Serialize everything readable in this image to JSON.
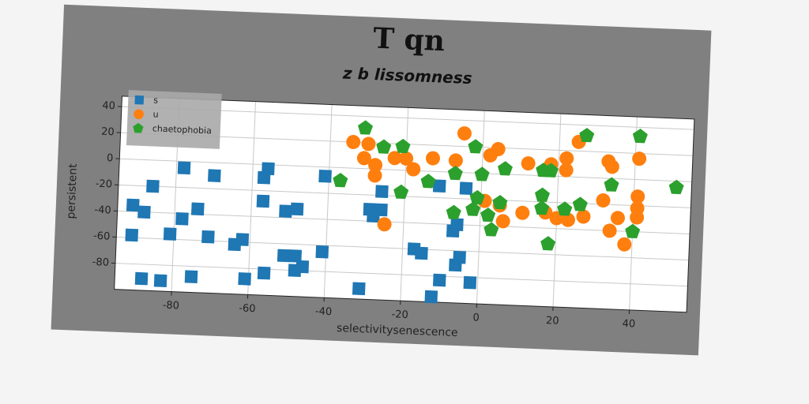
{
  "chart_data": {
    "type": "scatter",
    "title": "T qn",
    "subtitle": "z b lissomness",
    "xlabel": "selectivitysenescence",
    "ylabel": "persistent",
    "xlim": [
      -95,
      55
    ],
    "ylim": [
      -100,
      48
    ],
    "xticks": [
      -80,
      -60,
      -40,
      -20,
      0,
      20,
      40
    ],
    "yticks": [
      -80,
      -60,
      -40,
      -20,
      0,
      20,
      40
    ],
    "grid": true,
    "legend": "upper left",
    "series": [
      {
        "name": "s",
        "color": "#1f77b4",
        "marker": "square",
        "x": [
          -78,
          -70,
          -56,
          -57,
          -41,
          -86,
          -91,
          -88,
          -74,
          -78,
          -57,
          -51,
          -48,
          -91,
          -81,
          -71,
          -64,
          -62,
          -51,
          -48,
          -46,
          -48,
          -41,
          -56,
          -75,
          -61,
          -88,
          -83,
          -31,
          -26,
          -29,
          -28,
          -26,
          -11,
          -4,
          -17,
          -15,
          -5,
          -6,
          -7,
          -6,
          -10,
          -2,
          -12
        ],
        "values": [
          -5,
          -10,
          -3,
          -10,
          -7,
          -20,
          -35,
          -40,
          -36,
          -44,
          -28,
          -35,
          -33,
          -58,
          -56,
          -57,
          -62,
          -58,
          -69,
          -69,
          -77,
          -80,
          -65,
          -83,
          -88,
          -88,
          -91,
          -92,
          -92,
          -17,
          -31,
          -36,
          -31,
          -11,
          -12,
          -60,
          -63,
          -65,
          -71,
          -45,
          -40,
          -83,
          -84,
          -96
        ]
      },
      {
        "name": "u",
        "color": "#ff7f0e",
        "marker": "circle",
        "x": [
          -34,
          -30,
          -31,
          -28,
          -28,
          -23,
          -20,
          -18,
          -13,
          -7,
          -5,
          4,
          2,
          12,
          18,
          22,
          22,
          25,
          33,
          34,
          41,
          -25,
          1,
          5,
          6,
          11,
          17,
          20,
          23,
          27,
          32,
          36,
          34,
          38,
          41,
          41,
          41
        ],
        "values": [
          20,
          19,
          8,
          3,
          -5,
          9,
          9,
          1,
          10,
          9,
          30,
          19,
          14,
          9,
          9,
          14,
          5,
          27,
          13,
          9,
          16,
          -42,
          -21,
          -24,
          -36,
          -29,
          -28,
          -32,
          -33,
          -30,
          -17,
          -30,
          -40,
          -50,
          -22,
          -13,
          -29
        ]
      },
      {
        "name": "chaetophobia",
        "color": "#2ca02c",
        "marker": "pentagon",
        "x": [
          -31,
          -26,
          -21,
          -37,
          -21,
          -14,
          -7,
          -2,
          0,
          6,
          16,
          18,
          27,
          41,
          51,
          34,
          16,
          -1,
          5,
          -7,
          -2,
          2,
          3,
          16,
          22,
          26,
          40,
          18
        ],
        "values": [
          31,
          17,
          18,
          -10,
          -17,
          -8,
          -1,
          20,
          -1,
          4,
          4,
          4,
          32,
          33,
          -5,
          -5,
          -15,
          -19,
          -22,
          -31,
          -28,
          -32,
          -43,
          -25,
          -25,
          -21,
          -40,
          -52
        ]
      }
    ]
  }
}
